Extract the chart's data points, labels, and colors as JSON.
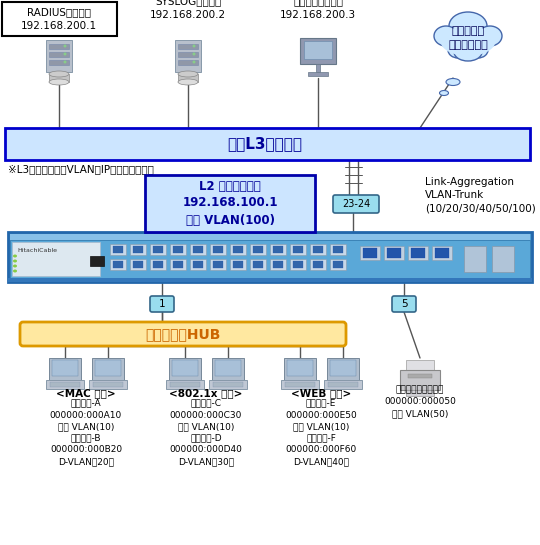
{
  "bg_color": "#ffffff",
  "radius_label": "RADIUSサーバー\n192.168.200.1",
  "syslog_label": "SYSLOGサーバー\n192.168.200.2",
  "netmon_label": "ネットワーク監視\n192.168.200.3",
  "cloud_label": "社内・社外\nネットワーク",
  "l3_switch_label": "上位L3スイッチ",
  "l3_note": "※L3スイッチの各VLANにIPアドレスを設定",
  "l2_switch_label": "L2 認証スイッチ\n192.168.100.1\n管理 VLAN(100)",
  "link_agg_label": "Link-Aggregation\nVLAN-Trunk\n(10/20/30/40/50/100)",
  "port1_label": "1",
  "port5_label": "5",
  "port2324_label": "23-24",
  "hub_label": "リピーターHUB",
  "mac_group_label": "<MAC 認証>",
  "mac_dev_a": "認証端末-A\n000000:000A10\n固定 VLAN(10)",
  "mac_dev_b": "認証端末-B\n000000:000B20\nD-VLAN（20）",
  "dot1x_group_label": "<802.1x 認証>",
  "dot1x_dev_c": "認証端末-C\n000000:000C30\n固定 VLAN(10)",
  "dot1x_dev_d": "認証端末-D\n000000:000D40\nD-VLAN（30）",
  "web_group_label": "<WEB 認証>",
  "web_dev_e": "認証端末-E\n000000:000E50\n固定 VLAN(10)",
  "web_dev_f": "認証端末-F\n000000:000F60\nD-VLAN（40）",
  "printer_label": "認証不要プリンター\n000000:000050\n固定 VLAN(50)",
  "l3_bg": "#cce5ff",
  "l3_border": "#0000cc",
  "l2_bg": "#cce5ff",
  "l2_border": "#0000aa",
  "hub_bg": "#ffe8a0",
  "hub_border": "#dd9900",
  "port_bg": "#99ddee",
  "port_border": "#336688"
}
